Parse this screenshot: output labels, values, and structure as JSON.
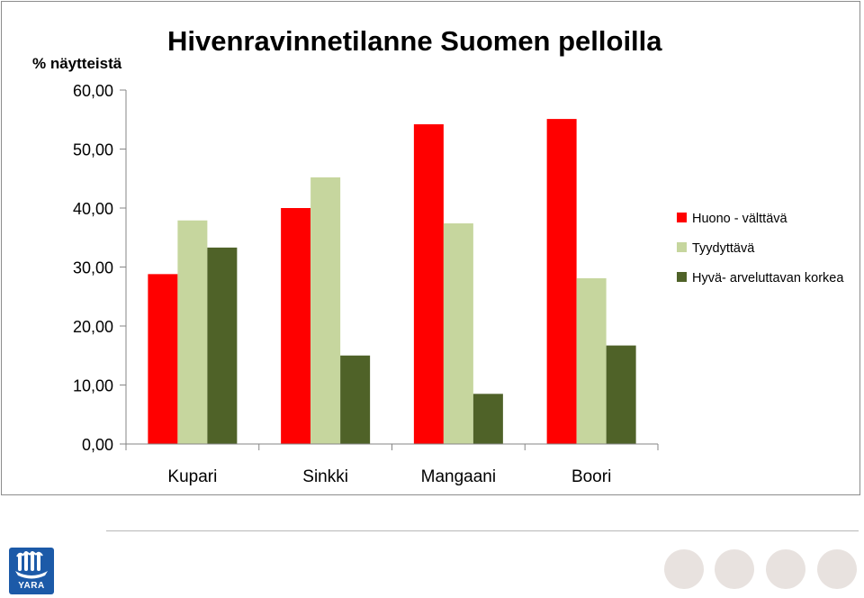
{
  "chart_data": {
    "type": "bar",
    "title": "Hivenravinnetilanne Suomen pelloilla",
    "ylabel": "% näytteistä",
    "xlabel": "",
    "categories": [
      "Kupari",
      "Sinkki",
      "Mangaani",
      "Boori"
    ],
    "ylim": [
      0,
      60
    ],
    "yticks": [
      "0,00",
      "10,00",
      "20,00",
      "30,00",
      "40,00",
      "50,00",
      "60,00"
    ],
    "grid": false,
    "legend_position": "right",
    "series": [
      {
        "name": "Huono - välttävä",
        "color": "#ff0000",
        "values": [
          28.8,
          40.0,
          54.2,
          55.1
        ]
      },
      {
        "name": "Tyydyttävä",
        "color": "#c6d69e",
        "values": [
          37.9,
          45.2,
          37.4,
          28.1
        ]
      },
      {
        "name": "Hyvä- arveluttavan korkea",
        "color": "#4f6228",
        "values": [
          33.3,
          15.0,
          8.5,
          16.7
        ]
      }
    ]
  },
  "footer": {
    "logo_text": "YARA",
    "logo_color": "#1c5aa8"
  }
}
